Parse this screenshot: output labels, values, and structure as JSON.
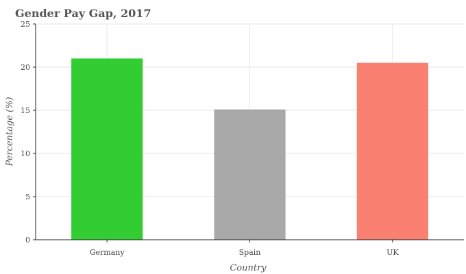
{
  "chart_data": {
    "type": "bar",
    "title": "Gender Pay Gap, 2017",
    "xlabel": "Country",
    "ylabel": "Percentage (%)",
    "categories": [
      "Germany",
      "Spain",
      "UK"
    ],
    "values": [
      21.0,
      15.1,
      20.5
    ],
    "colors": [
      "#32cd32",
      "#a9a9a9",
      "#fa8072"
    ],
    "ylim": [
      0,
      25
    ],
    "yticks": [
      0,
      5,
      10,
      15,
      20,
      25
    ],
    "grid": true,
    "legend": "none"
  }
}
